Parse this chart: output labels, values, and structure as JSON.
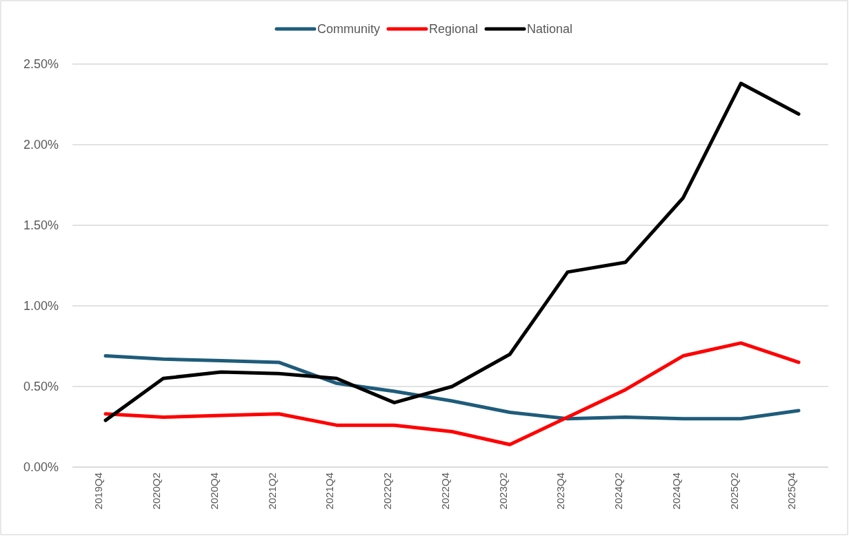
{
  "chart_data": {
    "type": "line",
    "categories": [
      "2019Q4",
      "2020Q2",
      "2020Q4",
      "2021Q2",
      "2021Q4",
      "2022Q2",
      "2022Q4",
      "2023Q2",
      "2023Q4",
      "2024Q2",
      "2024Q4",
      "2025Q2",
      "2025Q4"
    ],
    "series": [
      {
        "name": "Community",
        "color": "#1f5c7a",
        "values": [
          0.69,
          0.67,
          0.66,
          0.65,
          0.52,
          0.47,
          0.41,
          0.34,
          0.3,
          0.31,
          0.3,
          0.3,
          0.35
        ]
      },
      {
        "name": "Regional",
        "color": "#ff0000",
        "values": [
          0.33,
          0.31,
          0.32,
          0.33,
          0.26,
          0.26,
          0.22,
          0.14,
          0.31,
          0.48,
          0.69,
          0.77,
          0.65
        ]
      },
      {
        "name": "National",
        "color": "#000000",
        "values": [
          0.29,
          0.55,
          0.59,
          0.58,
          0.55,
          0.4,
          0.5,
          0.7,
          1.21,
          1.27,
          1.67,
          2.38,
          2.19
        ]
      }
    ],
    "ylim": [
      0,
      2.5
    ],
    "yticks": [
      {
        "value": 0,
        "label": "0.00%"
      },
      {
        "value": 0.5,
        "label": "0.50%"
      },
      {
        "value": 1,
        "label": "1.00%"
      },
      {
        "value": 1.5,
        "label": "1.50%"
      },
      {
        "value": 2,
        "label": "2.00%"
      },
      {
        "value": 2.5,
        "label": "2.50%"
      }
    ],
    "grid": "y",
    "legend": "top",
    "marker": "none",
    "line_style": "solid"
  }
}
